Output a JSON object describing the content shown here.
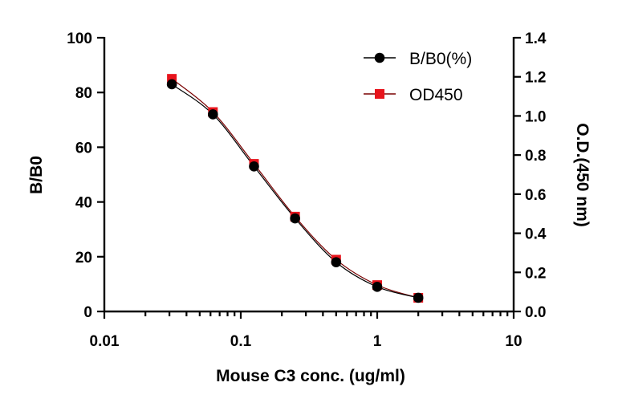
{
  "chart_data": {
    "type": "scatter",
    "xlabel": "Mouse C3 conc. (ug/ml)",
    "ylabel": "B/B0",
    "y2label": "O.D.(450 nm)",
    "xscale": "log",
    "xlim": [
      0.01,
      10
    ],
    "ylim": [
      0,
      100
    ],
    "y2lim": [
      0,
      1.4
    ],
    "x_ticks": [
      "0.01",
      "0.1",
      "1",
      "10"
    ],
    "y_ticks": [
      "0",
      "20",
      "40",
      "60",
      "80",
      "100"
    ],
    "y2_ticks": [
      "0.0",
      "0.2",
      "0.4",
      "0.6",
      "0.8",
      "1.0",
      "1.2",
      "1.4"
    ],
    "legend_position": "top-right",
    "grid": false,
    "series": [
      {
        "name": "B/B0(%)",
        "axis": "left",
        "marker": "circle",
        "color": "#000000",
        "x": [
          0.03125,
          0.0625,
          0.125,
          0.25,
          0.5,
          1,
          2
        ],
        "y": [
          83,
          72,
          53,
          34,
          18,
          9,
          5
        ]
      },
      {
        "name": "OD450",
        "axis": "right",
        "marker": "square",
        "color": "#e8141c",
        "line_color": "#7a0000",
        "x": [
          0.03125,
          0.0625,
          0.125,
          0.25,
          0.5,
          1,
          2
        ],
        "y": [
          1.19,
          1.02,
          0.755,
          0.485,
          0.265,
          0.135,
          0.07
        ]
      }
    ]
  }
}
